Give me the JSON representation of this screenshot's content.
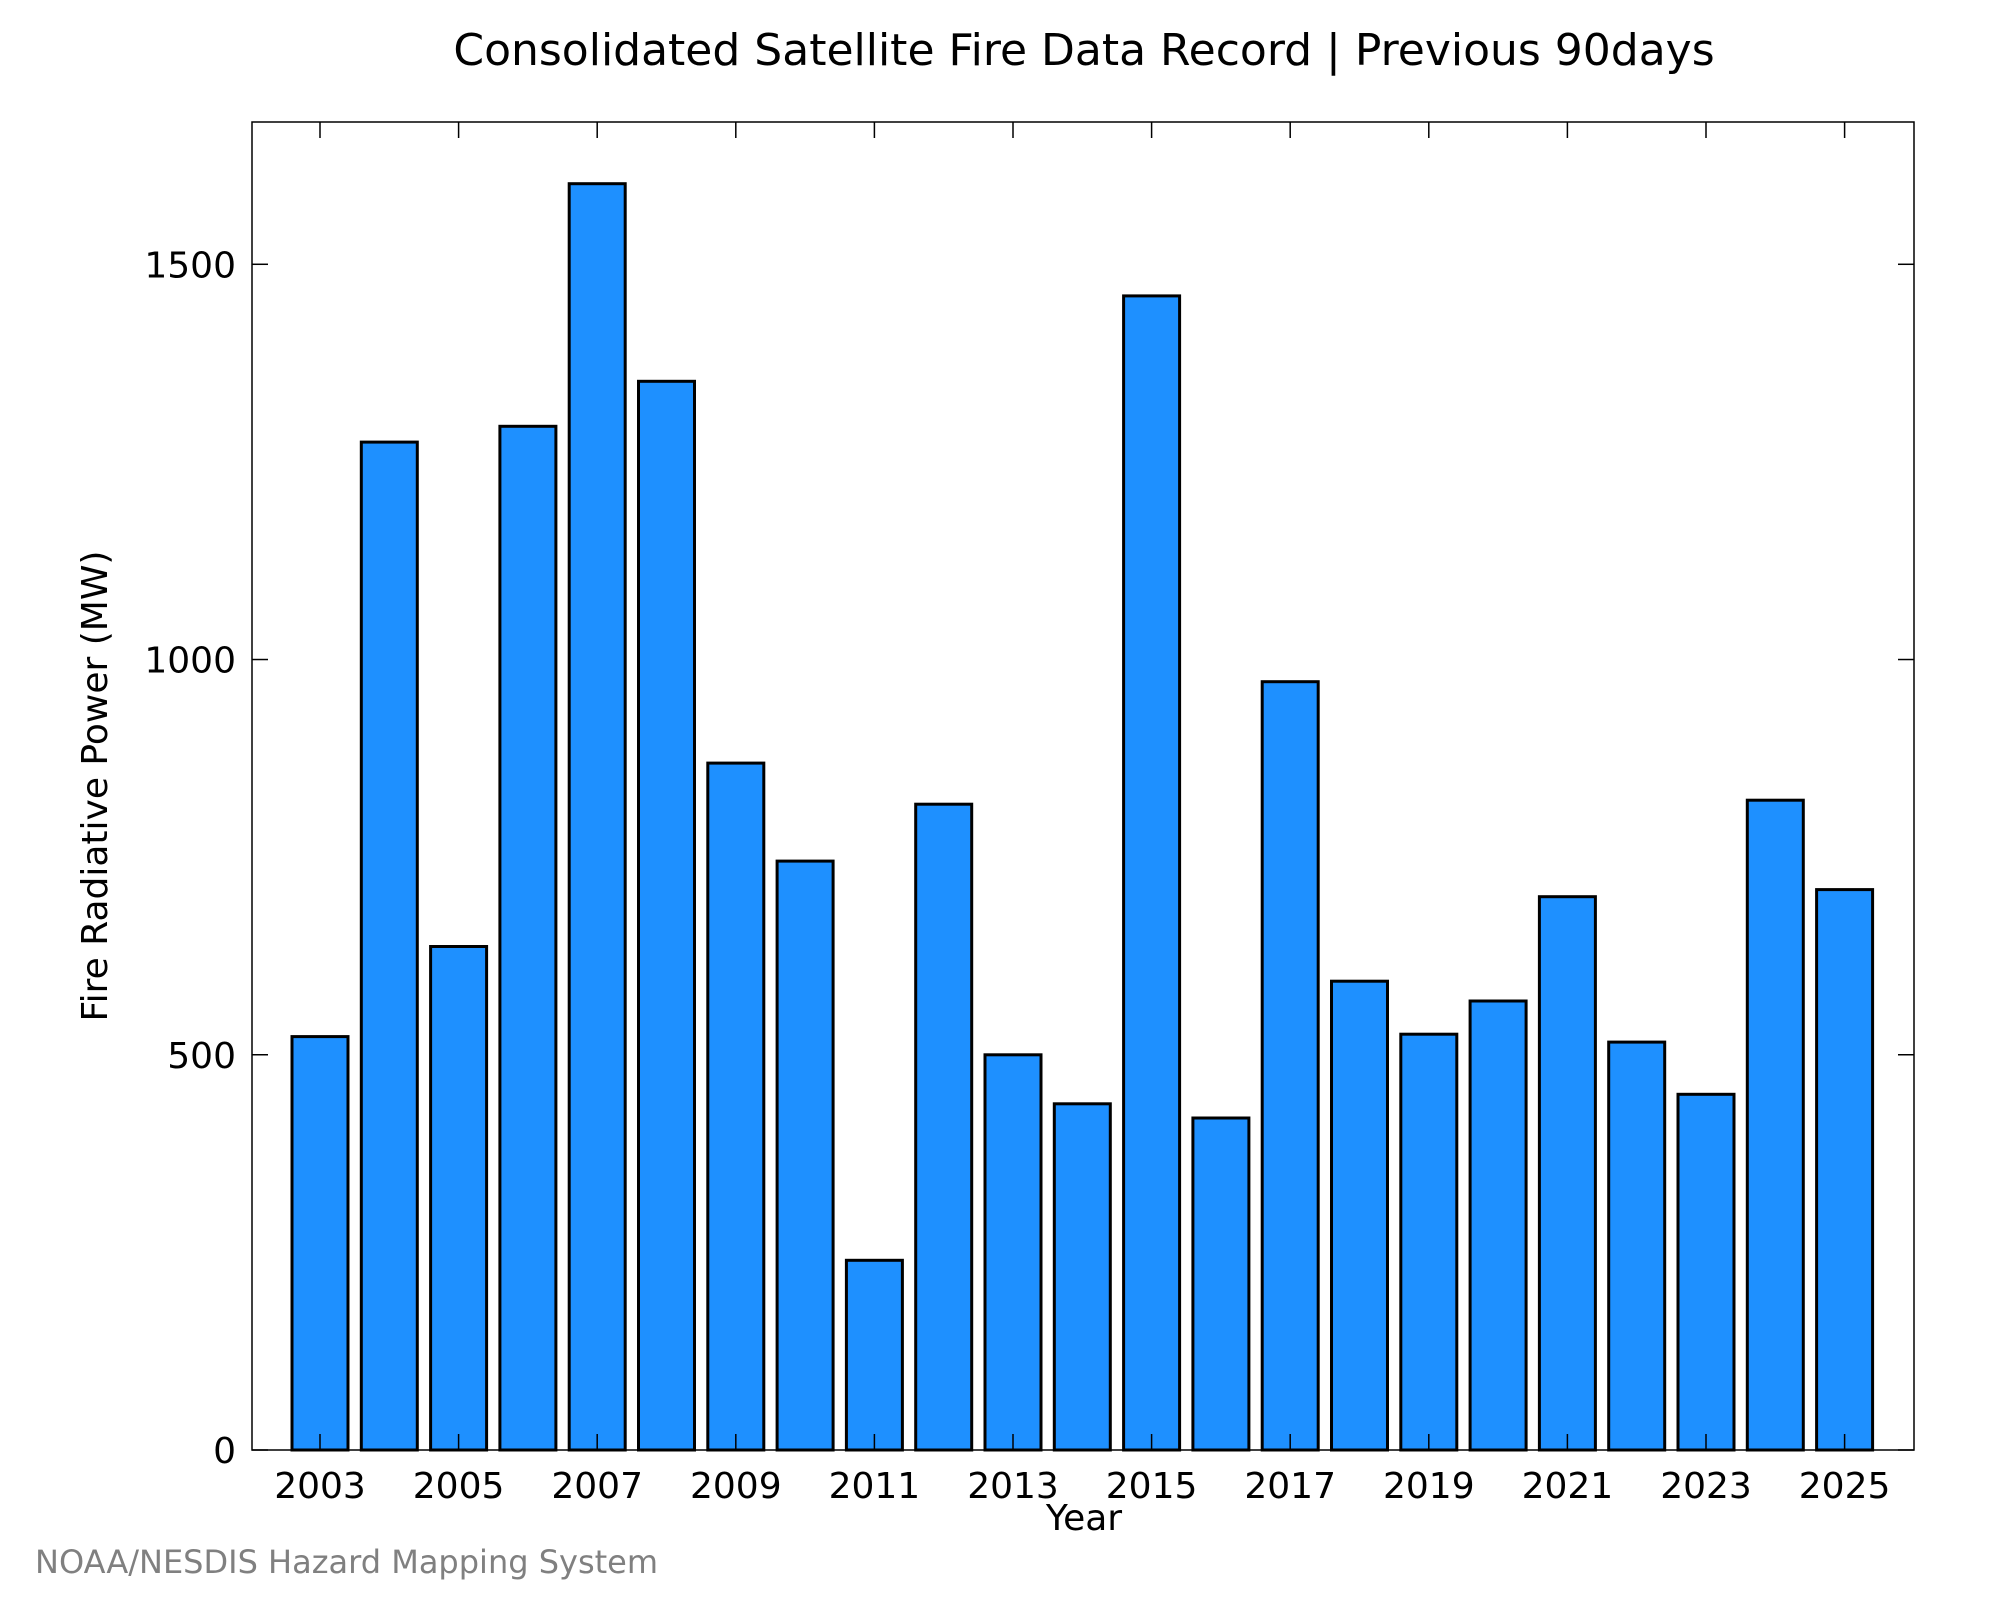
{
  "chart_data": {
    "type": "bar",
    "title": "Consolidated Satellite Fire Data Record | Previous 90days",
    "xlabel": "Year",
    "ylabel": "Fire Radiative Power (MW)",
    "categories": [
      "2003",
      "2004",
      "2005",
      "2006",
      "2007",
      "2008",
      "2009",
      "2010",
      "2011",
      "2012",
      "2013",
      "2014",
      "2015",
      "2016",
      "2017",
      "2018",
      "2019",
      "2020",
      "2021",
      "2022",
      "2023",
      "2024",
      "2025"
    ],
    "values": [
      523,
      1275,
      637,
      1295,
      1602,
      1352,
      869,
      745,
      240,
      817,
      500,
      438,
      1460,
      420,
      972,
      593,
      526,
      568,
      700,
      516,
      450,
      822,
      709
    ],
    "x_tick_labels": [
      "2003",
      "2005",
      "2007",
      "2009",
      "2011",
      "2013",
      "2015",
      "2017",
      "2019",
      "2021",
      "2023",
      "2025"
    ],
    "y_ticks": [
      0,
      500,
      1000,
      1500
    ],
    "ylim": [
      0,
      1680
    ],
    "bar_color": "#1e90ff",
    "grid": false,
    "legend": "none"
  },
  "credit": "NOAA/NESDIS Hazard Mapping System"
}
